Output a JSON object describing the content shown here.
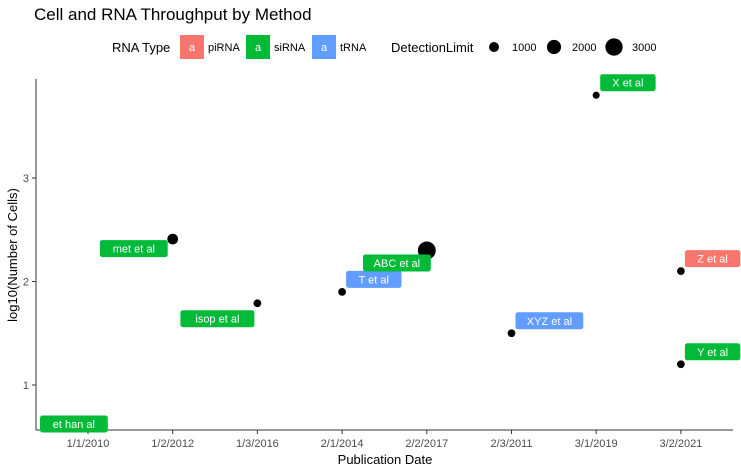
{
  "chart_data": {
    "type": "scatter",
    "title": "Cell and RNA Throughput by Method",
    "xlabel": "Publication Date",
    "ylabel": "log10(Number of Cells)",
    "x_categories": [
      "1/1/2010",
      "1/2/2012",
      "1/3/2016",
      "2/1/2014",
      "2/2/2017",
      "2/3/2011",
      "3/1/2019",
      "3/2/2021"
    ],
    "y_ticks": [
      1,
      2,
      3
    ],
    "ylim": [
      0.55,
      3.95
    ],
    "legend": {
      "placement": "top",
      "color_title": "RNA Type",
      "color_items": [
        {
          "key": "piRNA",
          "label": "piRNA",
          "glyph": "a",
          "color": "#F8766D"
        },
        {
          "key": "siRNA",
          "label": "siRNA",
          "glyph": "a",
          "color": "#00BA38"
        },
        {
          "key": "tRNA",
          "label": "tRNA",
          "glyph": "a",
          "color": "#619CFF"
        }
      ],
      "size_title": "DetectionLimit",
      "size_items": [
        {
          "label": "1000",
          "value": 1000
        },
        {
          "label": "2000",
          "value": 2000
        },
        {
          "label": "3000",
          "value": 3000
        }
      ]
    },
    "points": [
      {
        "x": "1/1/2010",
        "y": 0.57,
        "label": "et han al",
        "rna": "siRNA"
      },
      {
        "x": "1/2/2012",
        "y": 2.41,
        "label": "met et al",
        "rna": "siRNA",
        "detection": 1150
      },
      {
        "x": "1/3/2016",
        "y": 1.79,
        "label": "isop et al",
        "rna": "siRNA",
        "detection": 600
      },
      {
        "x": "2/1/2014",
        "y": 1.9,
        "label": "T et al",
        "rna": "tRNA",
        "detection": 600
      },
      {
        "x": "2/2/2017",
        "y": 2.3,
        "label": "ABC et al",
        "rna": "siRNA",
        "detection": 3200
      },
      {
        "x": "2/3/2011",
        "y": 1.5,
        "label": "XYZ et al",
        "rna": "tRNA",
        "detection": 600
      },
      {
        "x": "3/1/2019",
        "y": 3.8,
        "label": "X et al",
        "rna": "siRNA",
        "detection": 500
      },
      {
        "x": "3/2/2021",
        "y": 2.1,
        "label": "Z et al",
        "rna": "piRNA",
        "detection": 600
      },
      {
        "x": "3/2/2021",
        "y": 1.2,
        "label": "Y et al",
        "rna": "siRNA",
        "detection": 600
      }
    ],
    "colors": {
      "piRNA": "#F8766D",
      "siRNA": "#00BA38",
      "tRNA": "#619CFF",
      "point": "#000000",
      "axis": "#333333"
    },
    "grid": false
  }
}
